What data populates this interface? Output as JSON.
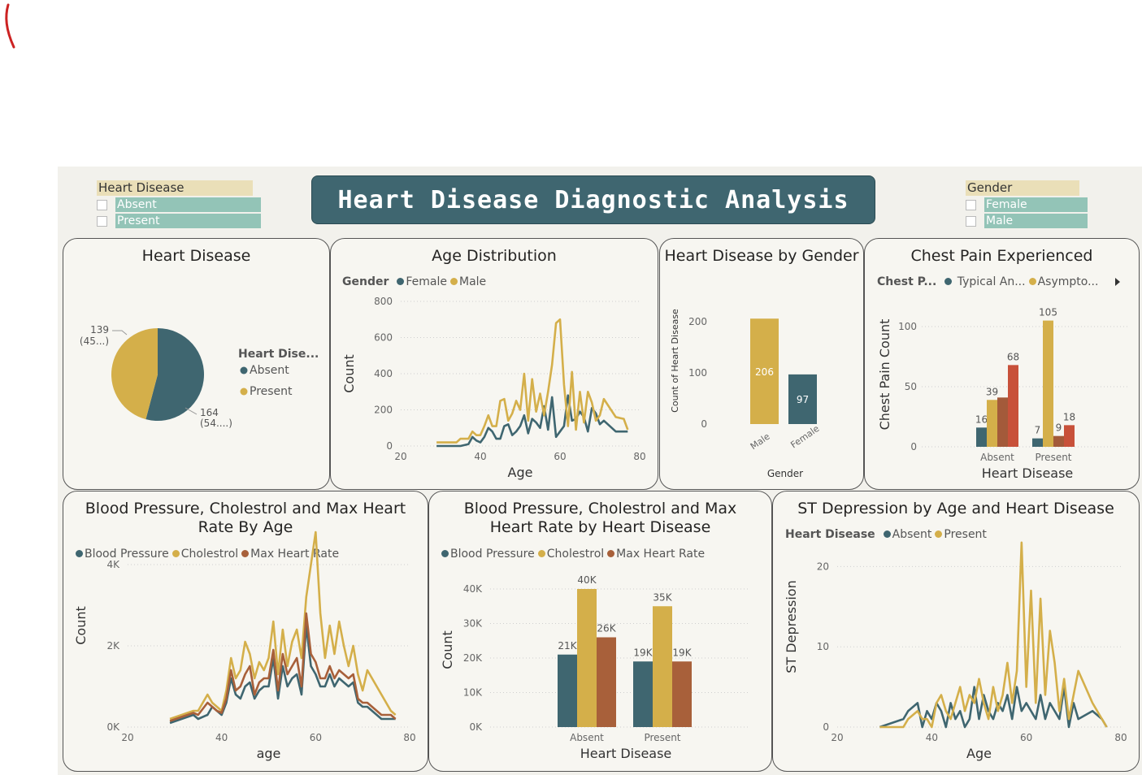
{
  "header": {
    "title": "Heart Disease Diagnostic Analysis"
  },
  "slicers": {
    "heart_disease": {
      "label": "Heart Disease",
      "options": [
        "Absent",
        "Present"
      ]
    },
    "gender": {
      "label": "Gender",
      "options": [
        "Female",
        "Male"
      ]
    }
  },
  "colors": {
    "teal": "#3f6670",
    "gold": "#d4af4a",
    "rust": "#a8603a",
    "red": "#c8513a",
    "brown": "#a35a3a"
  },
  "chart_data": [
    {
      "id": "pie",
      "type": "pie",
      "title": "Heart Disease",
      "legend_title": "Heart Dise...",
      "slices": [
        {
          "name": "Absent",
          "value": 164,
          "label": "164",
          "pct_label": "(54....)",
          "color": "#3f6670"
        },
        {
          "name": "Present",
          "value": 139,
          "label": "139",
          "pct_label": "(45...)",
          "color": "#d4af4a"
        }
      ]
    },
    {
      "id": "age",
      "type": "line",
      "title": "Age Distribution",
      "legend_title": "Gender",
      "xlabel": "Age",
      "ylabel": "Count",
      "xlim": [
        20,
        80
      ],
      "ylim": [
        0,
        800
      ],
      "xticks": [
        "20",
        "40",
        "60",
        "80"
      ],
      "yticks": [
        "0",
        "200",
        "400",
        "600",
        "800"
      ],
      "x": [
        29,
        34,
        35,
        37,
        38,
        39,
        40,
        41,
        42,
        43,
        44,
        45,
        46,
        47,
        48,
        49,
        50,
        51,
        52,
        53,
        54,
        55,
        56,
        57,
        58,
        59,
        60,
        61,
        62,
        63,
        64,
        65,
        66,
        67,
        68,
        69,
        70,
        71,
        74,
        76,
        77
      ],
      "series": [
        {
          "name": "Female",
          "color": "#3f6670",
          "values": [
            0,
            0,
            0,
            10,
            50,
            30,
            20,
            50,
            100,
            80,
            40,
            40,
            110,
            120,
            60,
            80,
            110,
            170,
            70,
            150,
            130,
            100,
            220,
            90,
            270,
            50,
            80,
            110,
            280,
            140,
            150,
            190,
            160,
            80,
            210,
            180,
            120,
            140,
            80,
            80,
            80
          ]
        },
        {
          "name": "Male",
          "color": "#d4af4a",
          "values": [
            20,
            20,
            40,
            40,
            80,
            60,
            60,
            110,
            170,
            110,
            110,
            250,
            260,
            140,
            180,
            250,
            200,
            400,
            140,
            370,
            190,
            290,
            170,
            300,
            450,
            680,
            700,
            340,
            110,
            410,
            90,
            300,
            130,
            300,
            240,
            140,
            170,
            260,
            160,
            150,
            90
          ]
        }
      ]
    },
    {
      "id": "gender",
      "type": "bar",
      "title": "Heart Disease by Gender",
      "xlabel": "Gender",
      "ylabel": "Count of Heart Disease",
      "ylim": [
        0,
        200
      ],
      "yticks": [
        "0",
        "100",
        "200"
      ],
      "categories": [
        "Male",
        "Female"
      ],
      "values": [
        206,
        97
      ],
      "colors": [
        "#d4af4a",
        "#3f6670"
      ]
    },
    {
      "id": "chest",
      "type": "bar",
      "title": "Chest Pain Experienced",
      "legend_title": "Chest P...",
      "legend_items": [
        {
          "name": "Typical An...",
          "color": "#3f6670"
        },
        {
          "name": "Asympto...",
          "color": "#d4af4a"
        }
      ],
      "xlabel": "Heart Disease",
      "ylabel": "Chest Pain Count",
      "ylim": [
        0,
        100
      ],
      "yticks": [
        "0",
        "50",
        "100"
      ],
      "categories": [
        "Absent",
        "Present"
      ],
      "series": [
        {
          "color": "#3f6670",
          "values": [
            16,
            7
          ]
        },
        {
          "color": "#d4af4a",
          "values": [
            39,
            105
          ]
        },
        {
          "color": "#a35a3a",
          "values": [
            41,
            9
          ]
        },
        {
          "color": "#c8513a",
          "values": [
            68,
            18
          ]
        }
      ],
      "bar_labels": [
        [
          "16",
          "7"
        ],
        [
          "39",
          "105"
        ],
        [
          "",
          "9"
        ],
        [
          "68",
          "18"
        ]
      ]
    },
    {
      "id": "bpage",
      "type": "line",
      "title": "Blood Pressure, Cholestrol and Max Heart Rate By Age",
      "xlabel": "age",
      "ylabel": "Count",
      "xlim": [
        20,
        80
      ],
      "ylim": [
        0,
        5000
      ],
      "xticks": [
        "20",
        "40",
        "60",
        "80"
      ],
      "yticks": [
        "0K",
        "2K",
        "4K"
      ],
      "x": [
        29,
        34,
        35,
        37,
        38,
        39,
        40,
        41,
        42,
        43,
        44,
        45,
        46,
        47,
        48,
        49,
        50,
        51,
        52,
        53,
        54,
        55,
        56,
        57,
        58,
        59,
        60,
        61,
        62,
        63,
        64,
        65,
        66,
        67,
        68,
        69,
        70,
        71,
        74,
        76,
        77
      ],
      "series": [
        {
          "name": "Blood Pressure",
          "color": "#3f6670",
          "values": [
            100,
            300,
            200,
            300,
            500,
            400,
            300,
            600,
            1200,
            800,
            700,
            1000,
            1100,
            700,
            900,
            1000,
            1000,
            1700,
            700,
            1500,
            1000,
            1200,
            1300,
            800,
            2500,
            1500,
            1300,
            1000,
            1000,
            1300,
            1000,
            1200,
            1100,
            1000,
            1100,
            600,
            500,
            500,
            200,
            200,
            200
          ]
        },
        {
          "name": "Cholestrol",
          "color": "#d4af4a",
          "values": [
            200,
            400,
            400,
            800,
            600,
            500,
            400,
            900,
            1700,
            1200,
            1400,
            2100,
            1800,
            1200,
            1600,
            1400,
            1700,
            2600,
            1300,
            2400,
            1500,
            2100,
            2400,
            1700,
            3200,
            4000,
            4800,
            2800,
            1700,
            2500,
            1800,
            2600,
            2000,
            1500,
            2000,
            1300,
            900,
            1400,
            800,
            400,
            300
          ]
        },
        {
          "name": "Max Heart Rate",
          "color": "#a8603a",
          "values": [
            150,
            350,
            300,
            600,
            500,
            400,
            350,
            700,
            1400,
            900,
            1000,
            1300,
            1500,
            800,
            1100,
            1200,
            1200,
            1900,
            900,
            1800,
            1300,
            1500,
            1700,
            1000,
            2800,
            1800,
            1600,
            1200,
            1200,
            1500,
            1200,
            1400,
            1300,
            1200,
            1300,
            700,
            600,
            600,
            300,
            300,
            200
          ]
        }
      ]
    },
    {
      "id": "bphd",
      "type": "bar",
      "title": "Blood Pressure, Cholestrol and Max Heart Rate by Heart Disease",
      "xlabel": "Heart Disease",
      "ylabel": "Count",
      "ylim": [
        0,
        42000
      ],
      "yticks": [
        "0K",
        "10K",
        "20K",
        "30K",
        "40K"
      ],
      "categories": [
        "Absent",
        "Present"
      ],
      "series": [
        {
          "name": "Blood Pressure",
          "color": "#3f6670",
          "values": [
            21000,
            19000
          ],
          "labels": [
            "21K",
            "19K"
          ]
        },
        {
          "name": "Cholestrol",
          "color": "#d4af4a",
          "values": [
            40000,
            35000
          ],
          "labels": [
            "40K",
            "35K"
          ]
        },
        {
          "name": "Max Heart Rate",
          "color": "#a8603a",
          "values": [
            26000,
            19000
          ],
          "labels": [
            "26K",
            "19K"
          ]
        }
      ]
    },
    {
      "id": "st",
      "type": "line",
      "title": "ST Depression by Age and Heart Disease",
      "legend_title": "Heart Disease",
      "xlabel": "Age",
      "ylabel": "ST Depression",
      "xlim": [
        20,
        80
      ],
      "ylim": [
        0,
        25
      ],
      "xticks": [
        "20",
        "40",
        "60",
        "80"
      ],
      "yticks": [
        "0",
        "10",
        "20"
      ],
      "x": [
        29,
        34,
        35,
        37,
        38,
        39,
        40,
        41,
        42,
        43,
        44,
        45,
        46,
        47,
        48,
        49,
        50,
        51,
        52,
        53,
        54,
        55,
        56,
        57,
        58,
        59,
        60,
        61,
        62,
        63,
        64,
        65,
        66,
        67,
        68,
        69,
        70,
        71,
        74,
        76,
        77
      ],
      "series": [
        {
          "name": "Absent",
          "color": "#3f6670",
          "values": [
            0,
            1,
            2,
            3,
            0,
            2,
            1,
            3,
            2,
            0,
            3,
            1,
            2,
            0,
            1,
            5,
            1,
            4,
            2,
            1,
            3,
            2,
            4,
            1,
            5,
            2,
            3,
            2,
            1,
            4,
            1,
            3,
            2,
            1,
            5,
            0,
            3,
            1,
            2,
            1,
            0
          ]
        },
        {
          "name": "Present",
          "color": "#d4af4a",
          "values": [
            0,
            0,
            1,
            2,
            1,
            1,
            0,
            3,
            4,
            2,
            1,
            3,
            5,
            2,
            4,
            3,
            6,
            3,
            1,
            5,
            2,
            4,
            8,
            3,
            7,
            23,
            5,
            17,
            3,
            16,
            4,
            12,
            8,
            2,
            6,
            1,
            4,
            7,
            3,
            1,
            0
          ]
        }
      ]
    }
  ]
}
